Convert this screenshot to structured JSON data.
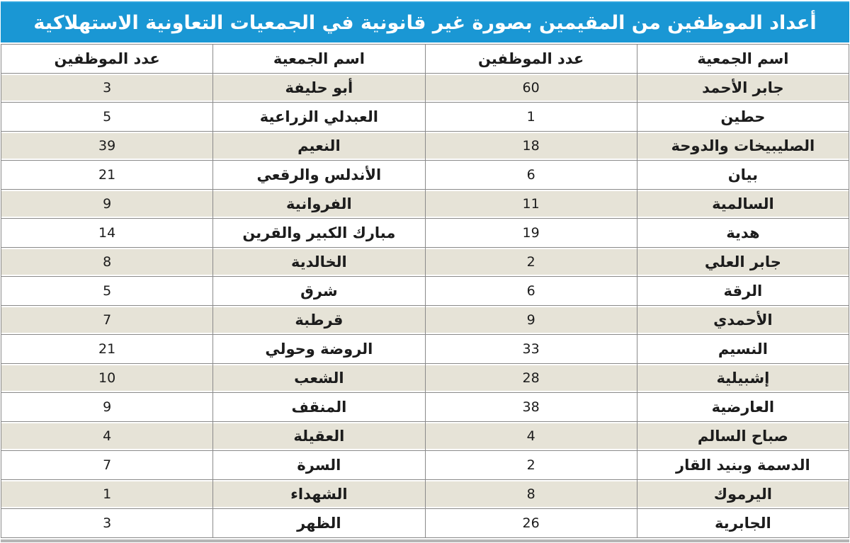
{
  "title": "أعداد الموظفين من المقيمين بصورة غير قانونية في الجمعيات التعاونية الاستهلاكية",
  "table": {
    "headers": [
      "اسم الجمعية",
      "عدد الموظفين",
      "اسم الجمعية",
      "عدد الموظفين"
    ],
    "rows": [
      [
        "جابر الأحمد",
        "60",
        "أبو حليفة",
        "3"
      ],
      [
        "حطين",
        "1",
        "العبدلي الزراعية",
        "5"
      ],
      [
        "الصليبيخات والدوحة",
        "18",
        "النعيم",
        "39"
      ],
      [
        "بيان",
        "6",
        "الأندلس والرقعي",
        "21"
      ],
      [
        "السالمية",
        "11",
        "الفروانية",
        "9"
      ],
      [
        "هدية",
        "19",
        "مبارك الكبير والقرين",
        "14"
      ],
      [
        "جابر العلي",
        "2",
        "الخالدية",
        "8"
      ],
      [
        "الرقة",
        "6",
        "شرق",
        "5"
      ],
      [
        "الأحمدي",
        "9",
        "قرطبة",
        "7"
      ],
      [
        "النسيم",
        "33",
        "الروضة وحولي",
        "21"
      ],
      [
        "إشبيلية",
        "28",
        "الشعب",
        "10"
      ],
      [
        "العارضية",
        "38",
        "المنقف",
        "9"
      ],
      [
        "صباح السالم",
        "4",
        "العقيلة",
        "4"
      ],
      [
        "الدسمة وبنيد القار",
        "2",
        "السرة",
        "7"
      ],
      [
        "اليرموك",
        "8",
        "الشهداء",
        "1"
      ],
      [
        "الجابرية",
        "26",
        "الظهر",
        "3"
      ]
    ]
  },
  "colors": {
    "title_bg": "#1a97d4",
    "alt_row_bg": "#e6e3d7",
    "border": "#8a8a8a",
    "bottom_bar": "#b5b5b5",
    "title_text": "#ffffff"
  }
}
